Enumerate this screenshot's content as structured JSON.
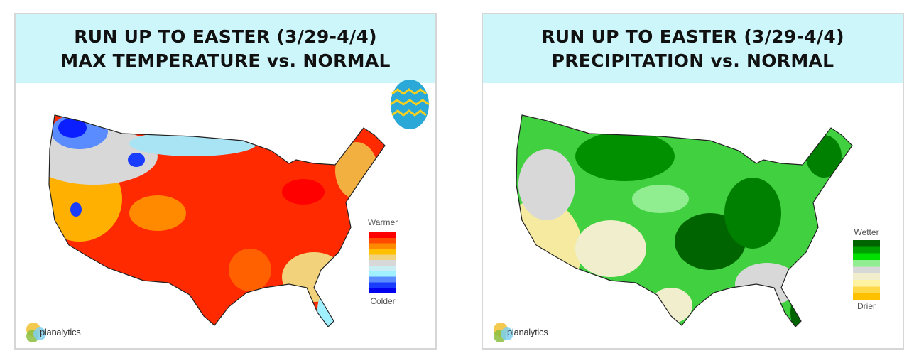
{
  "panels": [
    {
      "title_line1": "RUN UP TO EASTER (3/29-4/4)",
      "title_line2": "MAX TEMPERATURE vs. NORMAL",
      "legend_top": "Warmer",
      "legend_bottom": "Colder",
      "legend_colors": [
        "#ff0000",
        "#ff4a00",
        "#ff8a00",
        "#ffc000",
        "#f2d27a",
        "#d8d8d8",
        "#c8eef4",
        "#a0f0ff",
        "#5a8cff",
        "#1a3cff",
        "#0000ee"
      ],
      "logo": "planalytics"
    },
    {
      "title_line1": "RUN UP TO EASTER (3/29-4/4)",
      "title_line2": "PRECIPITATION vs. NORMAL",
      "legend_top": "Wetter",
      "legend_bottom": "Drier",
      "legend_colors": [
        "#006400",
        "#00a000",
        "#00e000",
        "#90ee90",
        "#d8d8d8",
        "#f0eecc",
        "#fff2a0",
        "#ffd84a",
        "#ffc000"
      ],
      "logo": "planalytics"
    }
  ]
}
